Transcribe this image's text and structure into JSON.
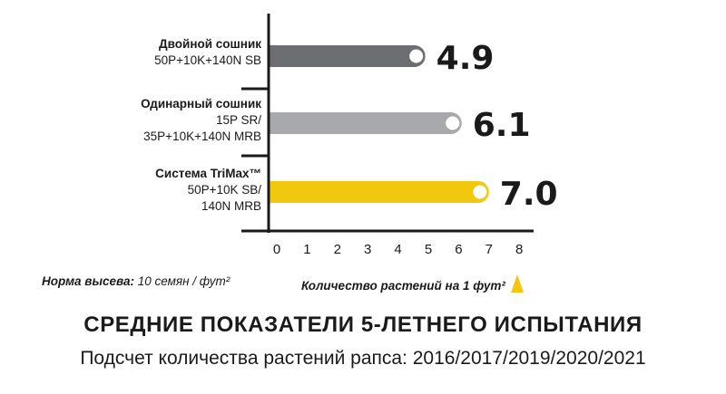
{
  "chart_data": {
    "type": "bar",
    "orientation": "horizontal",
    "categories": [
      {
        "name": "Двойной сошник",
        "lines": [
          "50P+10K+140N SB"
        ]
      },
      {
        "name": "Одинарный сошник",
        "lines": [
          "15P SR/",
          "35P+10K+140N MRB"
        ]
      },
      {
        "name": "Система TriMax™",
        "lines": [
          "50P+10K SB/",
          "140N MRB"
        ]
      }
    ],
    "values": [
      4.9,
      6.1,
      7.0
    ],
    "value_labels": [
      "4.9",
      "6.1",
      "7.0"
    ],
    "bar_colors": [
      "#6d6e71",
      "#a7a9ac",
      "#f2c80f"
    ],
    "x_ticks": [
      "0",
      "1",
      "2",
      "3",
      "4",
      "5",
      "6",
      "7",
      "8"
    ],
    "xlim": [
      0,
      8
    ],
    "grid": false
  },
  "notes": {
    "rate_label": "Норма высева:",
    "rate_value": "10 семян / фут²",
    "count_label": "Количество растений на 1 фут²",
    "marker_color": "#f2c80f"
  },
  "title": "СРЕДНИЕ ПОКАЗАТЕЛИ 5-ЛЕТНЕГО ИСПЫТАНИЯ",
  "subtitle": "Подсчет количества растений рапса: 2016/2017/2019/2020/2021"
}
